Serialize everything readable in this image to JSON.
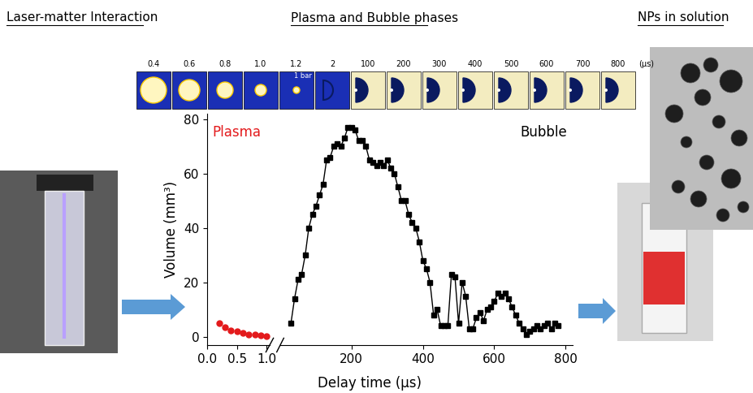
{
  "headers": [
    "Laser-matter Interaction",
    "Plasma and Bubble phases",
    "NPs in solution"
  ],
  "frames": {
    "labels": [
      "0.4",
      "0.6",
      "0.8",
      "1.0",
      "1.2",
      "2",
      "100",
      "200",
      "300",
      "400",
      "500",
      "600",
      "700",
      "800"
    ],
    "unit": "(µs)",
    "scale_bar": "1 bar"
  },
  "chart_data": {
    "type": "scatter",
    "x_label": "Delay time (µs)",
    "y_label": "Volume (mm³)",
    "ylim": [
      -3,
      82
    ],
    "yticks": [
      0,
      20,
      40,
      60,
      80
    ],
    "series": [
      {
        "name": "Plasma",
        "color": "#e31a1c",
        "marker": "circle",
        "line_style": "none",
        "xlim": [
          0,
          1.05
        ],
        "xticks": [
          {
            "value": 0,
            "label": "0.0"
          },
          {
            "value": 0.5,
            "label": "0.5"
          },
          {
            "value": 1,
            "label": "1.0"
          }
        ],
        "x": [
          0.2,
          0.3,
          0.4,
          0.5,
          0.6,
          0.7,
          0.8,
          0.9,
          1.0
        ],
        "values": [
          5,
          3.5,
          2.5,
          2,
          1.5,
          1,
          0.8,
          0.5,
          0.4
        ]
      },
      {
        "name": "Bubble",
        "color": "#000000",
        "marker": "square",
        "line_style": "solid",
        "xlim": [
          0,
          820
        ],
        "xticks": [
          200,
          400,
          600,
          800
        ],
        "x": [
          30,
          40,
          50,
          60,
          70,
          80,
          90,
          100,
          110,
          120,
          130,
          140,
          150,
          160,
          170,
          180,
          190,
          200,
          210,
          220,
          230,
          240,
          250,
          260,
          270,
          280,
          290,
          300,
          310,
          320,
          330,
          340,
          350,
          360,
          370,
          380,
          390,
          400,
          410,
          420,
          430,
          440,
          450,
          460,
          470,
          480,
          490,
          500,
          510,
          520,
          530,
          540,
          550,
          560,
          570,
          580,
          590,
          600,
          610,
          620,
          630,
          640,
          650,
          660,
          670,
          680,
          690,
          700,
          710,
          720,
          730,
          740,
          750,
          760,
          770,
          780
        ],
        "values": [
          5,
          14,
          21,
          23,
          30,
          40,
          45,
          48,
          52,
          56,
          65,
          66,
          70,
          71,
          70,
          73,
          77,
          77,
          76,
          72,
          72,
          70,
          65,
          64,
          63,
          64,
          63,
          65,
          62,
          60,
          55,
          50,
          50,
          45,
          42,
          40,
          35,
          28,
          25,
          20,
          8,
          10,
          4,
          4,
          4,
          23,
          22,
          5,
          20,
          15,
          3,
          3,
          7,
          9,
          6,
          10,
          11,
          13,
          16,
          15,
          16,
          14,
          11,
          8,
          5,
          3,
          1,
          2,
          3,
          4,
          3,
          4,
          5,
          3,
          5,
          4
        ]
      }
    ]
  }
}
